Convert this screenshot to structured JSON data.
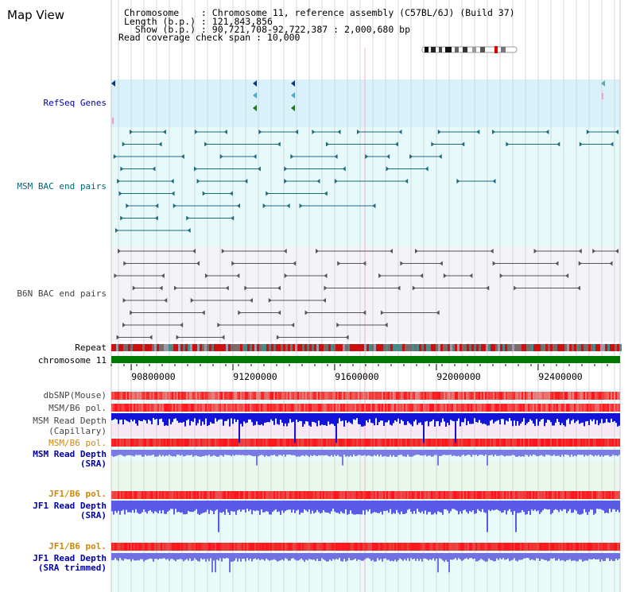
{
  "header": {
    "title": "Map View",
    "lines": [
      "Chromosome    : Chromosome 11, reference assembly (C57BL/6J) (Build 37)",
      "Length (b.p.) : 121,843,856",
      "  Show (b.p.) : 90,721,708-92,722,387 : 2,000,680 bp",
      "Read coverage check span : 10,000"
    ]
  },
  "tracks": {
    "refseq": "RefSeq Genes",
    "msm_bac": "MSM BAC end pairs",
    "b6n_bac": "B6N BAC end pairs",
    "repeat": "Repeat",
    "chromosome": "chromosome 11",
    "dbsnp": "dbSNP(Mouse)",
    "msm_b6_pol_1": "MSM/B6 pol.",
    "msm_depth_cap_1": "MSM Read Depth",
    "msm_depth_cap_2": "(Capillary)",
    "msm_b6_pol_2": "MSM/B6 pol.",
    "msm_depth_sra_1": "MSM Read Depth",
    "msm_depth_sra_2": "(SRA)",
    "jf1_b6_pol_1": "JF1/B6 pol.",
    "jf1_depth_sra_1": "JF1 Read Depth",
    "jf1_depth_sra_2": "(SRA)",
    "jf1_b6_pol_2": "JF1/B6 pol.",
    "jf1_depth_trim_1": "JF1 Read Depth",
    "jf1_depth_trim_2": "(SRA trimmed)"
  },
  "axis": {
    "ticks": [
      "90800000",
      "91200000",
      "91600000",
      "92000000",
      "92400000"
    ],
    "tick_values": [
      90800000,
      91200000,
      91600000,
      92000000,
      92400000
    ],
    "range": [
      90721708,
      92722387
    ]
  },
  "colors": {
    "refseq_bg": "#d9f1fa",
    "msm_bg": "#e7fafa",
    "b6n_bg": "#f4f4f8",
    "coverage_bg": "#e8fbf8",
    "chrom_bar": "#007a00",
    "label_blue": "#0000aa",
    "label_teal": "#006677",
    "label_gray": "#444444",
    "label_orange": "#d08800"
  }
}
